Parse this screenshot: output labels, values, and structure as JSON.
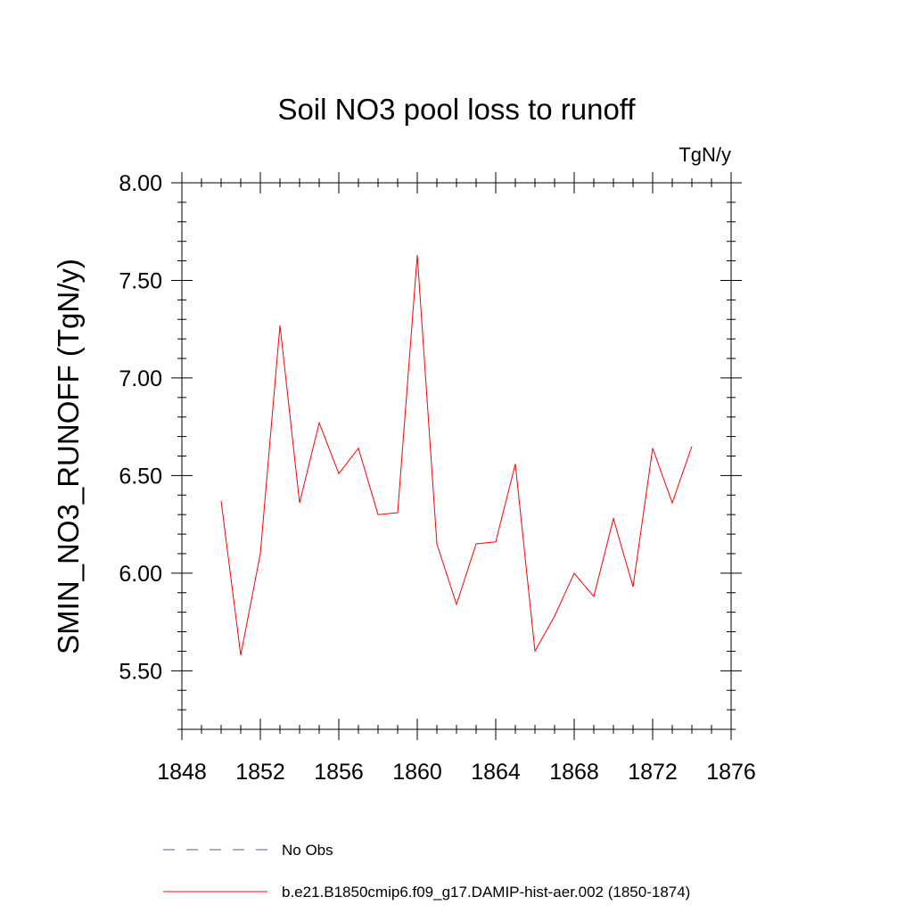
{
  "chart_data": {
    "type": "line",
    "title": "Soil NO3 pool loss to runoff",
    "units_label": "TgN/y",
    "ylabel": "SMIN_NO3_RUNOFF  (TgN/y)",
    "xlabel": "",
    "xlim": [
      1848,
      1876
    ],
    "ylim": [
      5.2,
      8.0
    ],
    "x_ticks": [
      1848,
      1852,
      1856,
      1860,
      1864,
      1868,
      1872,
      1876
    ],
    "x_tick_labels": [
      "1848",
      "1852",
      "1856",
      "1860",
      "1864",
      "1868",
      "1872",
      "1876"
    ],
    "y_ticks": [
      5.5,
      6.0,
      6.5,
      7.0,
      7.5,
      8.0
    ],
    "y_tick_labels": [
      "5.50",
      "6.00",
      "6.50",
      "7.00",
      "7.50",
      "8.00"
    ],
    "grid": false,
    "legend_position": "bottom",
    "series": [
      {
        "name": "b.e21.B1850cmip6.f09_g17.DAMIP-hist-aer.002 (1850-1874)",
        "color": "#ff0000",
        "style": "solid",
        "x": [
          1850,
          1851,
          1852,
          1853,
          1854,
          1855,
          1856,
          1857,
          1858,
          1859,
          1860,
          1861,
          1862,
          1863,
          1864,
          1865,
          1866,
          1867,
          1868,
          1869,
          1870,
          1871,
          1872,
          1873,
          1874
        ],
        "values": [
          6.37,
          5.58,
          6.1,
          7.27,
          6.36,
          6.77,
          6.51,
          6.64,
          6.3,
          6.31,
          7.63,
          6.15,
          5.84,
          6.15,
          6.16,
          6.56,
          5.6,
          5.78,
          6.0,
          5.88,
          6.28,
          5.93,
          6.64,
          6.36,
          6.65
        ]
      }
    ],
    "legend": [
      {
        "label": "No Obs",
        "color": "#5555aa",
        "style": "dashed"
      },
      {
        "label": "b.e21.B1850cmip6.f09_g17.DAMIP-hist-aer.002 (1850-1874)",
        "color": "#ff0000",
        "style": "solid"
      }
    ]
  }
}
